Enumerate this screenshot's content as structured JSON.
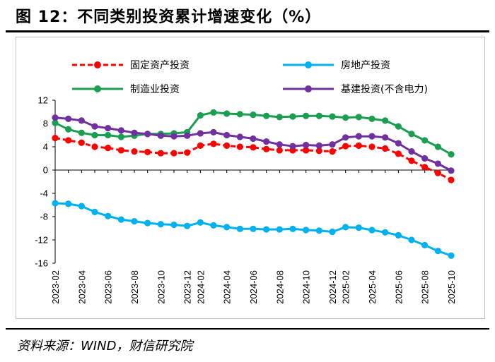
{
  "figure": {
    "title": "图 12：不同类别投资累计增速变化（%）",
    "source": "资料来源：WIND，财信研究院"
  },
  "chart_data": {
    "type": "line",
    "title": "",
    "xlabel": "",
    "ylabel": "",
    "ylim": [
      -16,
      12
    ],
    "yticks": [
      12,
      8,
      4,
      0,
      -4,
      -8,
      -12,
      -16
    ],
    "grid": false,
    "legend": "top",
    "x": [
      "2023-02",
      "2023-03",
      "2023-04",
      "2023-05",
      "2023-06",
      "2023-07",
      "2023-08",
      "2023-09",
      "2023-10",
      "2023-11",
      "2023-12",
      "2024-02",
      "2024-03",
      "2024-04",
      "2024-05",
      "2024-06",
      "2024-07",
      "2024-08",
      "2024-09",
      "2024-10",
      "2024-11",
      "2024-12",
      "2025-02",
      "2025-03",
      "2025-04",
      "2025-05",
      "2025-06",
      "2025-07",
      "2025-08",
      "2025-09",
      "2025-10"
    ],
    "xtick_labels": [
      "2023-02",
      "2023-04",
      "2023-06",
      "2023-08",
      "2023-10",
      "2023-12",
      "2024-02",
      "2024-04",
      "2024-06",
      "2024-08",
      "2024-10",
      "2024-12",
      "2025-02",
      "2025-04",
      "2025-06",
      "2025-08",
      "2025-10"
    ],
    "series": [
      {
        "name": "固定资产投资",
        "color": "#ff0000",
        "dashed": true,
        "values": [
          5.5,
          5.1,
          4.7,
          4.0,
          3.8,
          3.4,
          3.2,
          3.1,
          2.9,
          2.9,
          3.0,
          4.2,
          4.5,
          4.2,
          4.0,
          3.9,
          3.6,
          3.4,
          3.4,
          3.4,
          3.3,
          3.2,
          4.1,
          4.2,
          4.0,
          3.7,
          2.8,
          1.6,
          0.5,
          -0.5,
          -1.7
        ]
      },
      {
        "name": "房地产投资",
        "color": "#00b0f0",
        "dashed": false,
        "values": [
          -5.7,
          -5.8,
          -6.2,
          -7.2,
          -7.9,
          -8.5,
          -8.8,
          -9.1,
          -9.3,
          -9.4,
          -9.6,
          -9.0,
          -9.5,
          -9.8,
          -10.1,
          -10.1,
          -10.2,
          -10.2,
          -10.1,
          -10.3,
          -10.4,
          -10.6,
          -9.8,
          -9.9,
          -10.3,
          -10.7,
          -11.2,
          -12.0,
          -12.9,
          -13.9,
          -14.7
        ]
      },
      {
        "name": "制造业投资",
        "color": "#1a9e4f",
        "dashed": false,
        "values": [
          8.1,
          7.0,
          6.4,
          6.0,
          6.0,
          5.7,
          5.9,
          6.2,
          6.2,
          6.3,
          6.5,
          9.4,
          9.9,
          9.7,
          9.6,
          9.5,
          9.3,
          9.1,
          9.2,
          9.3,
          9.3,
          9.2,
          9.0,
          9.1,
          8.8,
          8.5,
          7.5,
          6.2,
          5.1,
          4.0,
          2.7
        ]
      },
      {
        "name": "基建投资(不含电力)",
        "color": "#7030a0",
        "dashed": false,
        "values": [
          9.0,
          8.8,
          8.5,
          7.5,
          7.2,
          6.8,
          6.4,
          6.2,
          5.9,
          5.8,
          5.9,
          6.3,
          6.5,
          6.0,
          5.7,
          5.4,
          4.9,
          4.4,
          4.1,
          4.3,
          4.2,
          4.4,
          5.6,
          5.8,
          5.8,
          5.6,
          4.6,
          3.2,
          2.0,
          1.1,
          -0.1
        ]
      }
    ]
  }
}
